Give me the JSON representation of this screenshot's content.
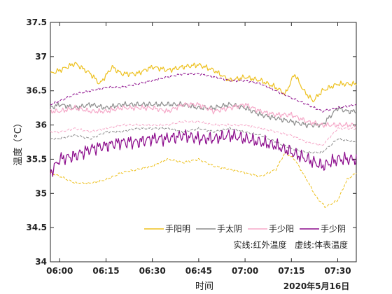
{
  "chart_data": {
    "type": "line",
    "xlabel": "时间",
    "ylabel": "温度（°C）",
    "date_label": "2020年5月16日",
    "x_ticks": [
      "06:00",
      "06:15",
      "06:30",
      "06:45",
      "07:00",
      "07:15",
      "07:30"
    ],
    "x_range": [
      "05:57",
      "07:36"
    ],
    "y_ticks": [
      34,
      34.5,
      35,
      35.5,
      36,
      36.5,
      37,
      37.5
    ],
    "ylim": [
      34,
      37.5
    ],
    "grid": false,
    "legend_position": "bottom-right",
    "note": "实线:红外温度   虚线:体表温度",
    "series": [
      {
        "name": "手阳明",
        "style": "solid",
        "color": "#EDC01D",
        "points": [
          [
            "05:57",
            36.75
          ],
          [
            "06:00",
            36.8
          ],
          [
            "06:05",
            36.9
          ],
          [
            "06:10",
            36.75
          ],
          [
            "06:13",
            36.6
          ],
          [
            "06:17",
            36.85
          ],
          [
            "06:20",
            36.75
          ],
          [
            "06:25",
            36.75
          ],
          [
            "06:30",
            36.85
          ],
          [
            "06:35",
            36.8
          ],
          [
            "06:40",
            36.85
          ],
          [
            "06:45",
            36.88
          ],
          [
            "06:50",
            36.8
          ],
          [
            "06:55",
            36.65
          ],
          [
            "07:00",
            36.7
          ],
          [
            "07:05",
            36.65
          ],
          [
            "07:10",
            36.55
          ],
          [
            "07:13",
            36.45
          ],
          [
            "07:16",
            36.75
          ],
          [
            "07:19",
            36.5
          ],
          [
            "07:22",
            36.35
          ],
          [
            "07:25",
            36.5
          ],
          [
            "07:30",
            36.6
          ],
          [
            "07:36",
            36.6
          ]
        ]
      },
      {
        "name": "手阳明",
        "style": "dashed",
        "color": "#EDC01D",
        "points": [
          [
            "05:57",
            35.3
          ],
          [
            "06:00",
            35.25
          ],
          [
            "06:05",
            35.15
          ],
          [
            "06:10",
            35.15
          ],
          [
            "06:15",
            35.2
          ],
          [
            "06:20",
            35.3
          ],
          [
            "06:25",
            35.35
          ],
          [
            "06:30",
            35.4
          ],
          [
            "06:35",
            35.5
          ],
          [
            "06:40",
            35.45
          ],
          [
            "06:45",
            35.5
          ],
          [
            "06:50",
            35.4
          ],
          [
            "06:55",
            35.35
          ],
          [
            "07:00",
            35.3
          ],
          [
            "07:05",
            35.25
          ],
          [
            "07:10",
            35.35
          ],
          [
            "07:13",
            35.6
          ],
          [
            "07:16",
            35.5
          ],
          [
            "07:20",
            35.2
          ],
          [
            "07:23",
            34.95
          ],
          [
            "07:26",
            34.8
          ],
          [
            "07:30",
            34.9
          ],
          [
            "07:33",
            35.2
          ],
          [
            "07:36",
            35.3
          ]
        ]
      },
      {
        "name": "手太阴",
        "style": "solid",
        "color": "#8C8C8C",
        "points": [
          [
            "05:57",
            36.25
          ],
          [
            "06:00",
            36.3
          ],
          [
            "06:05",
            36.25
          ],
          [
            "06:10",
            36.3
          ],
          [
            "06:15",
            36.25
          ],
          [
            "06:20",
            36.3
          ],
          [
            "06:25",
            36.3
          ],
          [
            "06:30",
            36.3
          ],
          [
            "06:35",
            36.3
          ],
          [
            "06:40",
            36.3
          ],
          [
            "06:45",
            36.25
          ],
          [
            "06:50",
            36.25
          ],
          [
            "06:55",
            36.3
          ],
          [
            "07:00",
            36.25
          ],
          [
            "07:05",
            36.15
          ],
          [
            "07:10",
            36.1
          ],
          [
            "07:15",
            36.05
          ],
          [
            "07:20",
            36.0
          ],
          [
            "07:25",
            36.0
          ],
          [
            "07:30",
            36.25
          ],
          [
            "07:33",
            36.2
          ],
          [
            "07:36",
            36.2
          ]
        ]
      },
      {
        "name": "手太阴",
        "style": "dashed",
        "color": "#8C8C8C",
        "points": [
          [
            "05:57",
            35.8
          ],
          [
            "06:00",
            35.8
          ],
          [
            "06:05",
            35.85
          ],
          [
            "06:10",
            35.8
          ],
          [
            "06:15",
            35.9
          ],
          [
            "06:20",
            35.9
          ],
          [
            "06:25",
            35.95
          ],
          [
            "06:30",
            35.95
          ],
          [
            "06:35",
            35.95
          ],
          [
            "06:40",
            35.9
          ],
          [
            "06:45",
            35.95
          ],
          [
            "06:50",
            35.9
          ],
          [
            "06:55",
            35.95
          ],
          [
            "07:00",
            35.9
          ],
          [
            "07:05",
            35.85
          ],
          [
            "07:10",
            35.75
          ],
          [
            "07:15",
            35.65
          ],
          [
            "07:20",
            35.6
          ],
          [
            "07:25",
            35.6
          ],
          [
            "07:30",
            35.8
          ],
          [
            "07:36",
            35.75
          ]
        ]
      },
      {
        "name": "手少阳",
        "style": "solid",
        "color": "#F5A8C8",
        "points": [
          [
            "05:57",
            36.2
          ],
          [
            "06:00",
            36.2
          ],
          [
            "06:05",
            36.25
          ],
          [
            "06:10",
            36.2
          ],
          [
            "06:15",
            36.2
          ],
          [
            "06:20",
            36.25
          ],
          [
            "06:25",
            36.25
          ],
          [
            "06:30",
            36.25
          ],
          [
            "06:35",
            36.2
          ],
          [
            "06:40",
            36.3
          ],
          [
            "06:45",
            36.3
          ],
          [
            "06:50",
            36.2
          ],
          [
            "06:55",
            36.25
          ],
          [
            "07:00",
            36.3
          ],
          [
            "07:05",
            36.2
          ],
          [
            "07:10",
            36.15
          ],
          [
            "07:15",
            36.15
          ],
          [
            "07:20",
            36.05
          ],
          [
            "07:25",
            36.0
          ],
          [
            "07:30",
            36.0
          ],
          [
            "07:36",
            36.0
          ]
        ]
      },
      {
        "name": "手少阳",
        "style": "dashed",
        "color": "#F5A8C8",
        "points": [
          [
            "05:57",
            35.9
          ],
          [
            "06:00",
            35.9
          ],
          [
            "06:05",
            35.95
          ],
          [
            "06:10",
            35.9
          ],
          [
            "06:15",
            35.95
          ],
          [
            "06:20",
            36.0
          ],
          [
            "06:25",
            36.0
          ],
          [
            "06:30",
            36.0
          ],
          [
            "06:35",
            36.0
          ],
          [
            "06:40",
            36.05
          ],
          [
            "06:45",
            36.05
          ],
          [
            "06:50",
            36.0
          ],
          [
            "06:55",
            36.0
          ],
          [
            "07:00",
            36.0
          ],
          [
            "07:05",
            35.95
          ],
          [
            "07:10",
            35.9
          ],
          [
            "07:15",
            35.85
          ],
          [
            "07:20",
            35.75
          ],
          [
            "07:25",
            35.7
          ],
          [
            "07:30",
            35.95
          ],
          [
            "07:36",
            35.95
          ]
        ]
      },
      {
        "name": "手少阴",
        "style": "solid",
        "color": "#8B0A8B",
        "points": [
          [
            "05:57",
            35.3
          ],
          [
            "06:00",
            35.5
          ],
          [
            "06:05",
            35.55
          ],
          [
            "06:10",
            35.65
          ],
          [
            "06:15",
            35.7
          ],
          [
            "06:20",
            35.75
          ],
          [
            "06:25",
            35.75
          ],
          [
            "06:30",
            35.8
          ],
          [
            "06:35",
            35.8
          ],
          [
            "06:40",
            35.85
          ],
          [
            "06:45",
            35.8
          ],
          [
            "06:50",
            35.8
          ],
          [
            "06:55",
            35.85
          ],
          [
            "07:00",
            35.8
          ],
          [
            "07:05",
            35.75
          ],
          [
            "07:10",
            35.7
          ],
          [
            "07:15",
            35.6
          ],
          [
            "07:20",
            35.5
          ],
          [
            "07:25",
            35.4
          ],
          [
            "07:30",
            35.5
          ],
          [
            "07:36",
            35.5
          ]
        ]
      },
      {
        "name": "手少阴",
        "style": "dashed",
        "color": "#8B0A8B",
        "points": [
          [
            "05:57",
            36.3
          ],
          [
            "06:00",
            36.35
          ],
          [
            "06:05",
            36.45
          ],
          [
            "06:10",
            36.5
          ],
          [
            "06:15",
            36.55
          ],
          [
            "06:20",
            36.55
          ],
          [
            "06:25",
            36.6
          ],
          [
            "06:30",
            36.65
          ],
          [
            "06:35",
            36.7
          ],
          [
            "06:40",
            36.75
          ],
          [
            "06:45",
            36.75
          ],
          [
            "06:50",
            36.7
          ],
          [
            "06:55",
            36.65
          ],
          [
            "07:00",
            36.65
          ],
          [
            "07:05",
            36.6
          ],
          [
            "07:10",
            36.5
          ],
          [
            "07:15",
            36.4
          ],
          [
            "07:20",
            36.3
          ],
          [
            "07:25",
            36.2
          ],
          [
            "07:30",
            36.25
          ],
          [
            "07:36",
            36.3
          ]
        ]
      }
    ],
    "legend": [
      {
        "name": "手阳明",
        "color": "#EDC01D"
      },
      {
        "name": "手太阴",
        "color": "#8C8C8C"
      },
      {
        "name": "手少阳",
        "color": "#F5A8C8"
      },
      {
        "name": "手少阴",
        "color": "#8B0A8B"
      }
    ]
  }
}
